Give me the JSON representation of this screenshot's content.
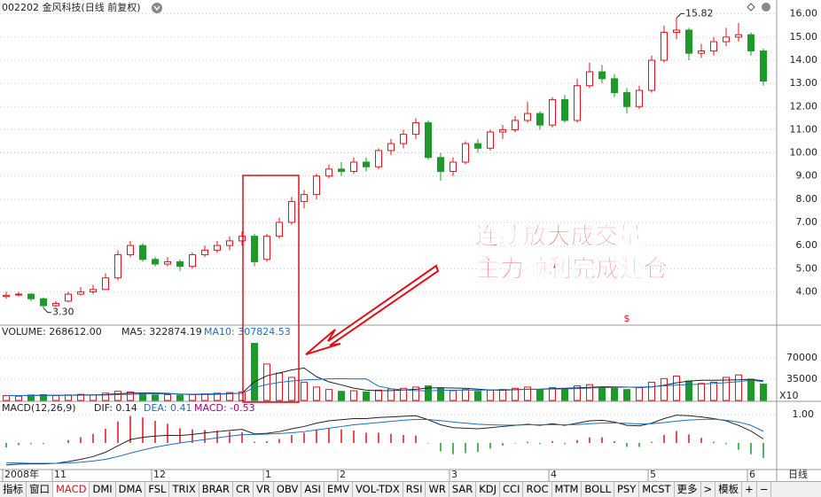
{
  "chart_data": {
    "type": "candlestick",
    "title": "002202 金风科技(日线 前复权)",
    "categories": [
      "2008年",
      null,
      null,
      null,
      "11",
      null,
      null,
      null,
      null,
      null,
      null,
      null,
      "12",
      null,
      null,
      null,
      null,
      null,
      null,
      null,
      null,
      "1",
      null,
      null,
      null,
      null,
      null,
      "2",
      null,
      null,
      null,
      null,
      null,
      null,
      null,
      null,
      "3",
      null,
      null,
      null,
      null,
      null,
      null,
      null,
      "4",
      null,
      null,
      null,
      null,
      null,
      null,
      null,
      "5",
      null,
      null,
      null,
      null,
      null,
      null,
      null,
      "6",
      null
    ],
    "ohlc": [
      [
        3.8,
        4.0,
        3.7,
        3.85
      ],
      [
        3.9,
        4.0,
        3.8,
        3.9
      ],
      [
        3.9,
        3.95,
        3.6,
        3.7
      ],
      [
        3.7,
        3.75,
        3.3,
        3.4
      ],
      [
        3.4,
        3.6,
        3.35,
        3.5
      ],
      [
        3.6,
        4.0,
        3.55,
        3.9
      ],
      [
        3.9,
        4.2,
        3.85,
        4.0
      ],
      [
        4.0,
        4.3,
        3.9,
        4.1
      ],
      [
        4.1,
        4.8,
        4.1,
        4.6
      ],
      [
        4.6,
        5.8,
        4.5,
        5.6
      ],
      [
        5.6,
        6.2,
        5.5,
        6.0
      ],
      [
        6.0,
        6.1,
        5.3,
        5.4
      ],
      [
        5.4,
        5.5,
        5.1,
        5.2
      ],
      [
        5.2,
        5.5,
        5.1,
        5.3
      ],
      [
        5.3,
        5.4,
        4.9,
        5.1
      ],
      [
        5.1,
        5.7,
        5.0,
        5.6
      ],
      [
        5.6,
        6.0,
        5.5,
        5.8
      ],
      [
        5.8,
        6.2,
        5.7,
        6.0
      ],
      [
        6.0,
        6.4,
        5.8,
        6.2
      ],
      [
        6.2,
        6.6,
        6.0,
        6.4
      ],
      [
        6.4,
        6.5,
        5.1,
        5.3
      ],
      [
        5.4,
        6.5,
        5.3,
        6.4
      ],
      [
        6.4,
        7.2,
        6.3,
        7.0
      ],
      [
        7.0,
        8.1,
        6.9,
        7.9
      ],
      [
        7.9,
        8.4,
        7.6,
        8.2
      ],
      [
        8.2,
        9.1,
        8.0,
        9.0
      ],
      [
        9.0,
        9.5,
        8.9,
        9.3
      ],
      [
        9.3,
        9.6,
        9.0,
        9.2
      ],
      [
        9.2,
        9.8,
        9.1,
        9.6
      ],
      [
        9.6,
        9.8,
        9.2,
        9.4
      ],
      [
        9.4,
        10.2,
        9.3,
        10.1
      ],
      [
        10.1,
        10.6,
        9.9,
        10.4
      ],
      [
        10.4,
        11.0,
        10.2,
        10.8
      ],
      [
        10.8,
        11.5,
        10.6,
        11.3
      ],
      [
        11.3,
        11.4,
        9.7,
        9.8
      ],
      [
        9.8,
        10.0,
        8.8,
        9.2
      ],
      [
        9.2,
        9.8,
        9.0,
        9.6
      ],
      [
        9.6,
        10.5,
        9.5,
        10.4
      ],
      [
        10.4,
        10.6,
        10.0,
        10.2
      ],
      [
        10.2,
        11.0,
        10.1,
        10.9
      ],
      [
        10.9,
        11.2,
        10.6,
        11.0
      ],
      [
        11.0,
        11.6,
        10.9,
        11.4
      ],
      [
        11.4,
        12.2,
        11.3,
        11.7
      ],
      [
        11.7,
        11.8,
        11.0,
        11.2
      ],
      [
        11.2,
        12.4,
        11.1,
        12.3
      ],
      [
        12.3,
        12.5,
        11.3,
        11.4
      ],
      [
        11.4,
        13.2,
        11.3,
        12.9
      ],
      [
        12.9,
        13.9,
        12.8,
        13.5
      ],
      [
        13.5,
        13.8,
        13.0,
        13.2
      ],
      [
        13.2,
        13.4,
        12.4,
        12.6
      ],
      [
        12.6,
        12.8,
        11.7,
        12.0
      ],
      [
        12.0,
        12.9,
        11.9,
        12.7
      ],
      [
        12.7,
        14.2,
        12.6,
        14.0
      ],
      [
        14.0,
        15.5,
        13.9,
        15.2
      ],
      [
        15.2,
        15.82,
        14.9,
        15.3
      ],
      [
        15.3,
        15.4,
        14.0,
        14.3
      ],
      [
        14.3,
        14.7,
        14.1,
        14.4
      ],
      [
        14.4,
        15.0,
        14.2,
        14.8
      ],
      [
        14.8,
        15.4,
        14.6,
        15.0
      ],
      [
        15.0,
        15.6,
        14.8,
        15.1
      ],
      [
        15.1,
        15.2,
        14.2,
        14.4
      ],
      [
        14.4,
        14.5,
        12.9,
        13.1
      ]
    ],
    "up_color": "#e8101a",
    "down_color": "#1e9a2a",
    "ylim": [
      2.6,
      16.6
    ],
    "yticks": [
      {
        "value": 4,
        "label": "4.00"
      },
      {
        "value": 5,
        "label": "5.00"
      },
      {
        "value": 6,
        "label": "6.00"
      },
      {
        "value": 7,
        "label": "7.00"
      },
      {
        "value": 8,
        "label": "8.00"
      },
      {
        "value": 9,
        "label": "9.00"
      },
      {
        "value": 10,
        "label": "10.00"
      },
      {
        "value": 11,
        "label": "11.00"
      },
      {
        "value": 12,
        "label": "12.00"
      },
      {
        "value": 13,
        "label": "13.00"
      },
      {
        "value": 14,
        "label": "14.00"
      },
      {
        "value": 15,
        "label": "15.00"
      },
      {
        "value": 16,
        "label": "16.00"
      }
    ],
    "grid": true,
    "high_label": "15.82",
    "low_label": "3.30",
    "marker": "$",
    "annotation": [
      "连续放大成交量",
      "主力顺利完成建仓"
    ],
    "volume": {
      "header": [
        "VOLUME: 268612.00",
        "MA5: 322874.19",
        "MA10: 307824.53"
      ],
      "unit": "X10",
      "values": [
        8000,
        7000,
        9000,
        9500,
        8000,
        9000,
        10000,
        9000,
        12000,
        15000,
        14000,
        11000,
        9000,
        9500,
        8500,
        10000,
        11000,
        12000,
        13000,
        14000,
        94000,
        60000,
        45000,
        38000,
        30000,
        22000,
        18000,
        15000,
        16000,
        14000,
        17000,
        19000,
        20000,
        22000,
        24000,
        20000,
        16000,
        18000,
        15000,
        17000,
        18000,
        20000,
        22000,
        18000,
        21000,
        19000,
        24000,
        26000,
        22000,
        20000,
        18000,
        21000,
        30000,
        36000,
        40000,
        32000,
        28000,
        30000,
        38000,
        42000,
        35000,
        26861.2
      ],
      "ma5": [
        8000,
        8000,
        8200,
        8500,
        8300,
        8500,
        9100,
        9100,
        9700,
        11000,
        12000,
        12200,
        12200,
        11700,
        10400,
        9600,
        10000,
        10200,
        11000,
        12000,
        30800,
        40600,
        45200,
        50200,
        53400,
        39000,
        30600,
        25600,
        20200,
        17000,
        16000,
        16200,
        17200,
        18400,
        20400,
        21000,
        20400,
        20000,
        18600,
        17200,
        16800,
        17600,
        18400,
        18600,
        19600,
        20000,
        20800,
        21600,
        22400,
        22200,
        22000,
        21400,
        22200,
        25000,
        29000,
        32000,
        33200,
        33200,
        33600,
        34000,
        34800,
        32287.4
      ],
      "ma10": [
        8000,
        8000,
        8100,
        8300,
        8300,
        8400,
        8600,
        8700,
        9000,
        9600,
        10100,
        10500,
        10700,
        10700,
        10500,
        10300,
        10800,
        11200,
        11300,
        11800,
        21100,
        26300,
        29700,
        32000,
        33700,
        34500,
        35600,
        35700,
        35400,
        35500,
        23400,
        19300,
        17400,
        16200,
        15600,
        16600,
        16800,
        17100,
        17000,
        17300,
        17700,
        17900,
        18300,
        18500,
        18700,
        19000,
        19600,
        20400,
        21100,
        21400,
        21800,
        21800,
        22700,
        24100,
        25300,
        26100,
        26800,
        28000,
        29400,
        30900,
        33400,
        30782.5
      ],
      "ylim": [
        0,
        124000
      ],
      "yticks": [
        35000,
        70000
      ]
    },
    "macd": {
      "header": [
        "MACD(12,26,9)",
        "DIF: 0.14",
        "DEA: 0.41",
        "MACD: -0.53"
      ],
      "dif": [
        -0.78,
        -0.75,
        -0.74,
        -0.74,
        -0.72,
        -0.66,
        -0.58,
        -0.48,
        -0.33,
        -0.1,
        0.12,
        0.2,
        0.24,
        0.27,
        0.26,
        0.3,
        0.35,
        0.4,
        0.44,
        0.48,
        0.32,
        0.34,
        0.4,
        0.5,
        0.58,
        0.7,
        0.78,
        0.82,
        0.86,
        0.86,
        0.9,
        0.92,
        0.94,
        0.96,
        0.82,
        0.64,
        0.54,
        0.52,
        0.5,
        0.54,
        0.58,
        0.62,
        0.66,
        0.62,
        0.68,
        0.62,
        0.7,
        0.78,
        0.8,
        0.74,
        0.62,
        0.6,
        0.7,
        0.86,
        0.98,
        0.96,
        0.92,
        0.86,
        0.78,
        0.62,
        0.42,
        0.14
      ],
      "dea": [
        -0.7,
        -0.71,
        -0.72,
        -0.72,
        -0.72,
        -0.71,
        -0.68,
        -0.64,
        -0.58,
        -0.48,
        -0.36,
        -0.25,
        -0.15,
        -0.07,
        0.0,
        0.06,
        0.12,
        0.18,
        0.24,
        0.29,
        0.3,
        0.31,
        0.33,
        0.36,
        0.4,
        0.46,
        0.52,
        0.58,
        0.64,
        0.68,
        0.72,
        0.76,
        0.8,
        0.83,
        0.83,
        0.79,
        0.74,
        0.7,
        0.66,
        0.64,
        0.63,
        0.63,
        0.64,
        0.64,
        0.65,
        0.64,
        0.65,
        0.68,
        0.7,
        0.71,
        0.69,
        0.67,
        0.68,
        0.72,
        0.77,
        0.81,
        0.83,
        0.84,
        0.8,
        0.74,
        0.62,
        0.41
      ],
      "hist": [
        -0.16,
        -0.08,
        -0.04,
        -0.04,
        0,
        0.1,
        0.2,
        0.32,
        0.5,
        0.76,
        0.96,
        0.9,
        0.78,
        0.68,
        0.52,
        0.48,
        0.46,
        0.44,
        0.4,
        0.38,
        0.04,
        0.06,
        0.14,
        0.28,
        0.36,
        0.48,
        0.52,
        0.48,
        0.44,
        0.36,
        0.36,
        0.32,
        0.28,
        0.26,
        -0.02,
        -0.3,
        -0.4,
        -0.36,
        -0.32,
        -0.2,
        -0.1,
        -0.02,
        0.04,
        -0.04,
        0.06,
        -0.04,
        0.1,
        0.2,
        0.2,
        0.06,
        -0.14,
        -0.14,
        0.04,
        0.28,
        0.42,
        0.3,
        0.18,
        0.04,
        -0.04,
        -0.24,
        -0.4,
        -0.53
      ],
      "ylim": [
        -0.94,
        1.47
      ],
      "yticks": [
        {
          "value": 1,
          "label": "1.00"
        }
      ]
    },
    "period_label": "日线",
    "tabs": [
      "指标",
      "窗口",
      "MACD",
      "DMI",
      "DMA",
      "FSL",
      "TRIX",
      "BRAR",
      "CR",
      "VR",
      "OBV",
      "ASI",
      "EMV",
      "VOL-TDX",
      "RSI",
      "WR",
      "SAR",
      "KDJ",
      "CCI",
      "ROC",
      "MTM",
      "BOLL",
      "PSY",
      "MCST",
      "更多",
      ">",
      "模板",
      "+",
      "−"
    ],
    "active_tab": 2
  }
}
